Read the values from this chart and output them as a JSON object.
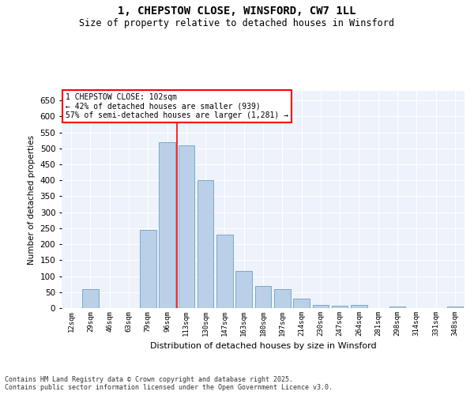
{
  "title_line1": "1, CHEPSTOW CLOSE, WINSFORD, CW7 1LL",
  "title_line2": "Size of property relative to detached houses in Winsford",
  "xlabel": "Distribution of detached houses by size in Winsford",
  "ylabel": "Number of detached properties",
  "categories": [
    "12sqm",
    "29sqm",
    "46sqm",
    "63sqm",
    "79sqm",
    "96sqm",
    "113sqm",
    "130sqm",
    "147sqm",
    "163sqm",
    "180sqm",
    "197sqm",
    "214sqm",
    "230sqm",
    "247sqm",
    "264sqm",
    "281sqm",
    "298sqm",
    "314sqm",
    "331sqm",
    "348sqm"
  ],
  "bar_values": [
    0,
    60,
    0,
    0,
    245,
    520,
    510,
    400,
    230,
    115,
    70,
    60,
    30,
    10,
    8,
    10,
    0,
    5,
    0,
    0,
    5
  ],
  "bar_color": "#bad0e8",
  "bar_edge_color": "#7aaac8",
  "vline_x_index": 5.5,
  "vline_color": "red",
  "annotation_text": "1 CHEPSTOW CLOSE: 102sqm\n← 42% of detached houses are smaller (939)\n57% of semi-detached houses are larger (1,281) →",
  "annotation_box_color": "white",
  "annotation_box_edge_color": "red",
  "ylim": [
    0,
    680
  ],
  "yticks": [
    0,
    50,
    100,
    150,
    200,
    250,
    300,
    350,
    400,
    450,
    500,
    550,
    600,
    650
  ],
  "footnote": "Contains HM Land Registry data © Crown copyright and database right 2025.\nContains public sector information licensed under the Open Government Licence v3.0.",
  "background_color": "#edf2fb",
  "grid_color": "#ffffff",
  "fig_bg_color": "#ffffff"
}
